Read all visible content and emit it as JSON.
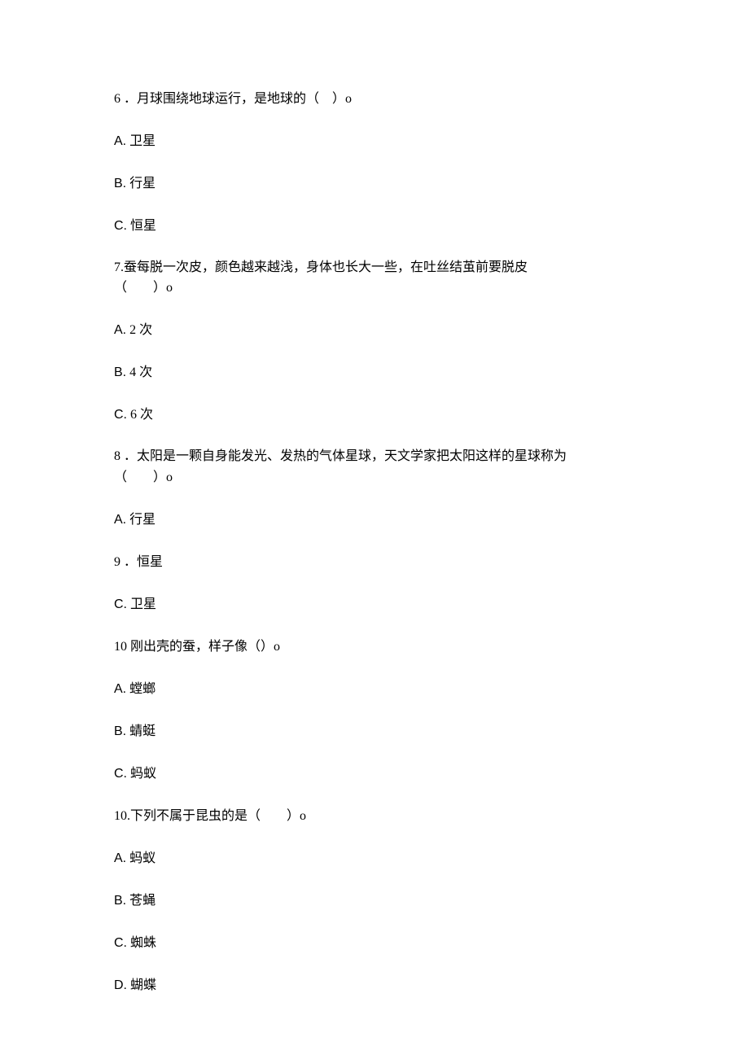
{
  "document": {
    "background_color": "#ffffff",
    "text_color": "#000000",
    "font_family": "SimSun",
    "base_fontsize": 16
  },
  "questions": [
    {
      "number": "6",
      "text": "．月球围绕地球运行，是地球的（　）o",
      "options": [
        {
          "label": "A.",
          "text": "卫星"
        },
        {
          "label": "B.",
          "text": "行星"
        },
        {
          "label": "C.",
          "text": "恒星"
        }
      ]
    },
    {
      "number": "7.",
      "text": "蚕每脱一次皮，颜色越来越浅，身体也长大一些，在吐丝结茧前要脱皮",
      "text_line2": "（　　）o",
      "options": [
        {
          "label": "A.",
          "text": "2 次"
        },
        {
          "label": "B.",
          "text": "4 次"
        },
        {
          "label": "C.",
          "text": "6 次"
        }
      ]
    },
    {
      "number": "8",
      "text": "．太阳是一颗自身能发光、发热的气体星球，天文学家把太阳这样的星球称为",
      "text_line2": "（　　）o",
      "options": [
        {
          "label": "A.",
          "text": "行星"
        },
        {
          "label": "9",
          "text": "．恒星"
        },
        {
          "label": "C.",
          "text": "卫星"
        }
      ]
    },
    {
      "number": "10",
      "text": "刚出壳的蚕，样子像（）o",
      "options": [
        {
          "label": "A.",
          "text": "螳螂"
        },
        {
          "label": "B.",
          "text": "蜻蜓"
        },
        {
          "label": "C.",
          "text": "蚂蚁"
        }
      ]
    },
    {
      "number": "10.",
      "text": "下列不属于昆虫的是（　　）o",
      "options": [
        {
          "label": "A.",
          "text": "蚂蚁"
        },
        {
          "label": "B.",
          "text": "苍蝇"
        },
        {
          "label": "C.",
          "text": "蜘蛛"
        },
        {
          "label": "D.",
          "text": "蝴蝶"
        }
      ]
    }
  ]
}
